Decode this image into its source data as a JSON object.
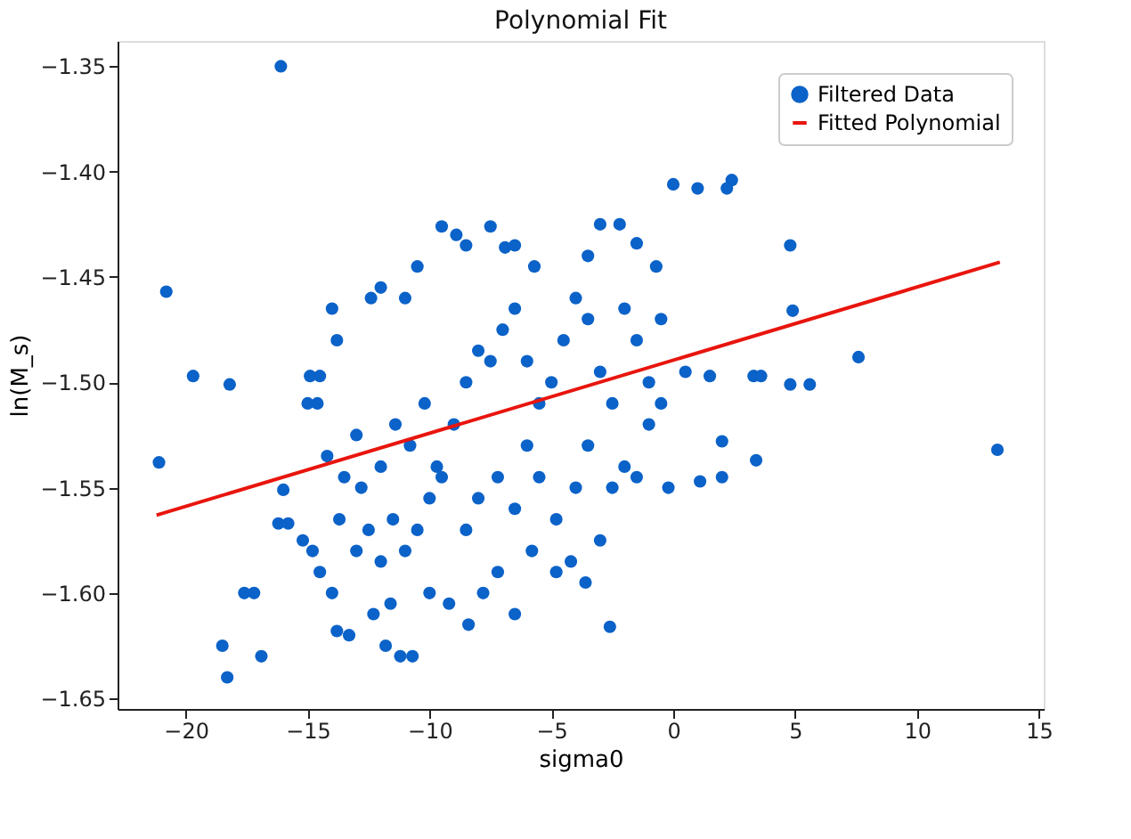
{
  "chart_data": {
    "type": "scatter",
    "title": "Polynomial Fit",
    "xlabel": "sigma0",
    "ylabel": "ln(M_s)",
    "xlim": [
      -22.8,
      15.2
    ],
    "ylim": [
      -1.655,
      -1.338
    ],
    "xticks": [
      {
        "value": -20,
        "label": "−20"
      },
      {
        "value": -15,
        "label": "−15"
      },
      {
        "value": -10,
        "label": "−10"
      },
      {
        "value": -5,
        "label": "−5"
      },
      0,
      5,
      10,
      15
    ],
    "yticks": [
      {
        "value": -1.65,
        "label": "−1.65"
      },
      {
        "value": -1.6,
        "label": "−1.60"
      },
      {
        "value": -1.55,
        "label": "−1.55"
      },
      {
        "value": -1.5,
        "label": "−1.50"
      },
      {
        "value": -1.45,
        "label": "−1.45"
      },
      {
        "value": -1.4,
        "label": "−1.40"
      },
      {
        "value": -1.35,
        "label": "−1.35"
      }
    ],
    "grid": false,
    "legend": "top right",
    "series": [
      {
        "name": "Filtered Data",
        "marker": "circle",
        "color": "#0b62c8",
        "x": [
          -16.1,
          -21.1,
          -20.8,
          -19.7,
          -18.2,
          -18.5,
          -18.3,
          -17.6,
          -17.2,
          -16.9,
          -16.2,
          -15.8,
          -16.0,
          13.3,
          7.6,
          5.6,
          4.9,
          4.8,
          4.8,
          3.3,
          3.6,
          3.4,
          2.0,
          2.4,
          2.2,
          1.0,
          0.0,
          -2.6,
          1.1,
          1.5,
          2.0,
          -14.9,
          -14.5,
          -15.0,
          -14.6,
          -14.0,
          -13.8,
          -12.4,
          -12.0,
          -11.0,
          -10.5,
          -9.5,
          -8.9,
          -8.5,
          -7.5,
          -6.9,
          -6.5,
          -5.7,
          -3.5,
          -3.0,
          -2.2,
          -1.5,
          -0.7,
          -0.5,
          -14.2,
          -13.0,
          -13.5,
          -12.8,
          -12.0,
          -11.4,
          -10.8,
          -10.2,
          -9.7,
          -9.0,
          -8.5,
          -8.0,
          -7.5,
          -7.0,
          -6.5,
          -6.0,
          -5.5,
          -5.0,
          -4.5,
          -4.0,
          -3.5,
          -3.0,
          -2.5,
          -2.0,
          -1.5,
          -1.0,
          -0.5,
          0.5,
          -13.0,
          -12.5,
          -12.0,
          -11.5,
          -11.0,
          -10.5,
          -10.0,
          -9.5,
          -8.5,
          -8.0,
          -7.2,
          -6.5,
          -6.0,
          -5.5,
          -4.8,
          -4.0,
          -3.5,
          -3.0,
          -2.5,
          -2.0,
          -1.5,
          -1.0,
          -0.2,
          -14.5,
          -14.0,
          -13.8,
          -13.3,
          -12.3,
          -11.8,
          -11.2,
          -10.7,
          -10.0,
          -9.2,
          -8.4,
          -7.8,
          -7.2,
          -6.5,
          -5.8,
          -4.8,
          -4.2,
          -3.6,
          -15.2,
          -14.8,
          -13.7,
          -11.6
        ],
        "values": [
          -1.35,
          -1.538,
          -1.457,
          -1.497,
          -1.501,
          -1.625,
          -1.64,
          -1.6,
          -1.6,
          -1.63,
          -1.567,
          -1.567,
          -1.551,
          -1.532,
          -1.488,
          -1.501,
          -1.466,
          -1.435,
          -1.501,
          -1.497,
          -1.497,
          -1.537,
          -1.528,
          -1.404,
          -1.408,
          -1.408,
          -1.406,
          -1.616,
          -1.547,
          -1.497,
          -1.545,
          -1.497,
          -1.497,
          -1.51,
          -1.51,
          -1.465,
          -1.48,
          -1.46,
          -1.455,
          -1.46,
          -1.445,
          -1.426,
          -1.43,
          -1.435,
          -1.426,
          -1.436,
          -1.435,
          -1.445,
          -1.44,
          -1.425,
          -1.425,
          -1.434,
          -1.445,
          -1.47,
          -1.535,
          -1.525,
          -1.545,
          -1.55,
          -1.54,
          -1.52,
          -1.53,
          -1.51,
          -1.54,
          -1.52,
          -1.5,
          -1.485,
          -1.49,
          -1.475,
          -1.465,
          -1.49,
          -1.51,
          -1.5,
          -1.48,
          -1.46,
          -1.47,
          -1.495,
          -1.51,
          -1.465,
          -1.48,
          -1.5,
          -1.51,
          -1.495,
          -1.58,
          -1.57,
          -1.585,
          -1.565,
          -1.58,
          -1.57,
          -1.555,
          -1.545,
          -1.57,
          -1.555,
          -1.545,
          -1.56,
          -1.53,
          -1.545,
          -1.565,
          -1.55,
          -1.53,
          -1.575,
          -1.55,
          -1.54,
          -1.545,
          -1.52,
          -1.55,
          -1.59,
          -1.6,
          -1.618,
          -1.62,
          -1.61,
          -1.625,
          -1.63,
          -1.63,
          -1.6,
          -1.605,
          -1.615,
          -1.6,
          -1.59,
          -1.61,
          -1.58,
          -1.59,
          -1.585,
          -1.595,
          -1.575,
          -1.58,
          -1.565,
          -1.605
        ]
      },
      {
        "name": "Fitted Polynomial",
        "type": "line",
        "color": "#e8150e",
        "line_style": "solid",
        "x": [
          -21.2,
          13.4
        ],
        "values": [
          -1.563,
          -1.443
        ]
      }
    ]
  }
}
